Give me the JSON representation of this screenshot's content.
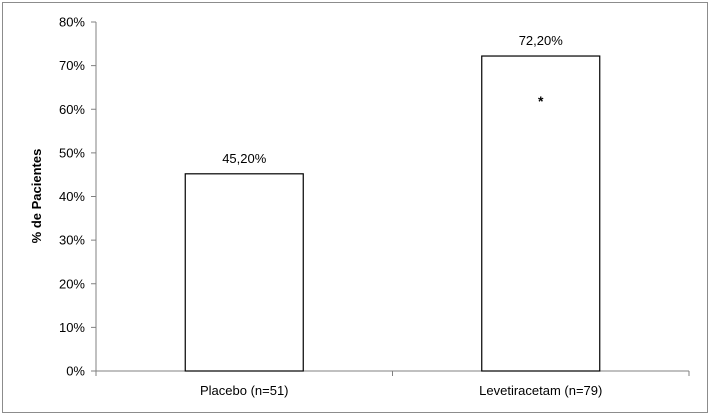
{
  "chart_data": {
    "type": "bar",
    "title": "",
    "xlabel": "",
    "ylabel": "% de Pacientes",
    "ylim": [
      0,
      80
    ],
    "yticks": [
      "0%",
      "10%",
      "20%",
      "30%",
      "40%",
      "50%",
      "60%",
      "70%",
      "80%"
    ],
    "ytick_values": [
      0,
      10,
      20,
      30,
      40,
      50,
      60,
      70,
      80
    ],
    "categories": [
      "Placebo (n=51)",
      "Levetiracetam (n=79)"
    ],
    "values": [
      45.2,
      72.2
    ],
    "data_labels": [
      "45,20%",
      "72,20%"
    ],
    "annotations": [
      {
        "category": "Levetiracetam (n=79)",
        "text": "*"
      }
    ],
    "grid": false,
    "legend": "none",
    "colors": {
      "bar_fill": "#ffffff",
      "bar_stroke": "#000000",
      "axis": "#808080",
      "frame": "#8c8c8c"
    }
  }
}
